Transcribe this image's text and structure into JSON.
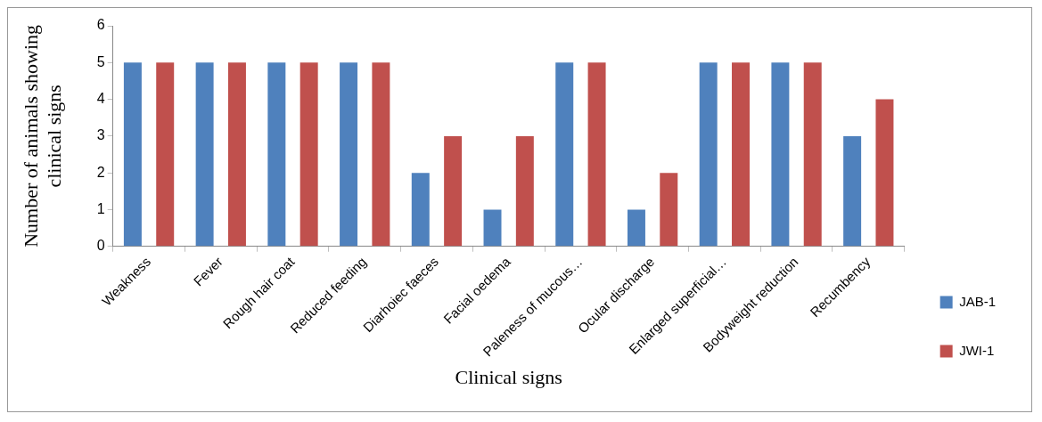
{
  "chart_data": {
    "type": "bar",
    "xlabel": "Clinical signs",
    "ylabel": "Number of animals showing clinical signs",
    "categories": [
      "Weakness",
      "Fever",
      "Rough hair coat",
      "Reduced feeding",
      "Diarhoiec faeces",
      "Facial oedema",
      "Paleness of mucous…",
      "Ocular discharge",
      "Enlarged superficial…",
      "Bodyweight reduction",
      "Recumbency"
    ],
    "series": [
      {
        "name": "JAB-1",
        "color": "#4f81bd",
        "values": [
          5,
          5,
          5,
          5,
          2,
          1,
          5,
          1,
          5,
          5,
          3
        ]
      },
      {
        "name": "JWI-1",
        "color": "#c0504d",
        "values": [
          5,
          5,
          5,
          5,
          3,
          3,
          5,
          2,
          5,
          5,
          4
        ]
      }
    ],
    "ylim": [
      0,
      6
    ],
    "yticks": [
      0,
      1,
      2,
      3,
      4,
      5,
      6
    ],
    "grid": false,
    "legend": "bottom right"
  }
}
